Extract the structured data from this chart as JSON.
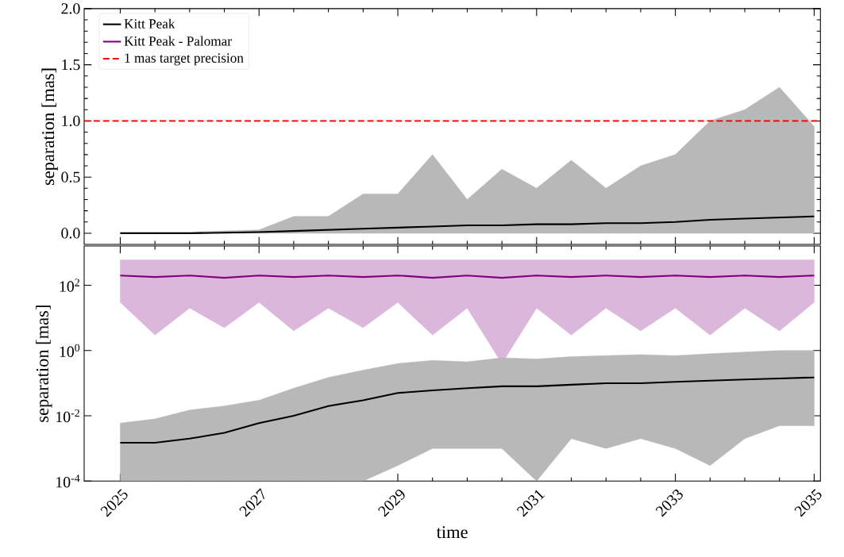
{
  "chart_data": [
    {
      "type": "line",
      "ylabel": "separation [mas]",
      "xlim": [
        2024.48,
        2035.09
      ],
      "xticks": [
        2025,
        2027,
        2029,
        2031,
        2033,
        2035
      ],
      "ylim": [
        -0.1,
        2.0
      ],
      "yticks": [
        {
          "value": 0,
          "label": "0.0"
        },
        {
          "value": 0.5,
          "label": "0.5"
        },
        {
          "value": 1,
          "label": "1.0"
        },
        {
          "value": 1.5,
          "label": "1.5"
        },
        {
          "value": 2,
          "label": "2.0"
        }
      ],
      "tick_labels": "y",
      "legend": "top left",
      "x": [
        2025,
        2025.5,
        2026,
        2026.5,
        2027,
        2027.5,
        2028,
        2028.5,
        2029,
        2029.5,
        2030,
        2030.5,
        2031,
        2031.5,
        2032,
        2032.5,
        2033,
        2033.5,
        2034,
        2034.5,
        2035
      ],
      "series": [
        {
          "name": "Kitt Peak",
          "color": "#000000",
          "values": [
            0,
            0,
            0,
            0.005,
            0.01,
            0.02,
            0.03,
            0.04,
            0.05,
            0.06,
            0.07,
            0.07,
            0.08,
            0.08,
            0.09,
            0.09,
            0.1,
            0.12,
            0.13,
            0.14,
            0.15
          ],
          "lower": [
            0,
            0,
            0,
            0,
            0,
            0,
            0,
            0,
            0,
            0,
            0,
            0,
            0,
            0,
            0,
            0,
            0,
            0,
            0,
            0,
            0
          ],
          "upper": [
            0.01,
            0.01,
            0.01,
            0.02,
            0.03,
            0.15,
            0.15,
            0.35,
            0.35,
            0.7,
            0.3,
            0.57,
            0.4,
            0.65,
            0.4,
            0.6,
            0.7,
            1.0,
            1.1,
            1.3,
            0.95
          ]
        }
      ],
      "ref_lines": [
        {
          "axis": "y",
          "value": 1,
          "label": "1 mas target precision",
          "color": "#ff0000",
          "line_style": "dashed"
        }
      ]
    },
    {
      "type": "line",
      "xlabel": "time",
      "ylabel": "separation [mas]",
      "log": "y",
      "xlim": [
        2024.48,
        2035.09
      ],
      "xticks": [
        2025,
        2027,
        2029,
        2031,
        2033,
        2035
      ],
      "ylim": [
        0.0001,
        1600
      ],
      "yticks": [
        {
          "value": 0.0001,
          "label": "10$^{-4}$"
        },
        {
          "value": 0.01,
          "label": "10$^{-2}$"
        },
        {
          "value": 1,
          "label": "10$^{0}$"
        },
        {
          "value": 100,
          "label": "10$^{2}$"
        }
      ],
      "x": [
        2025,
        2025.5,
        2026,
        2026.5,
        2027,
        2027.5,
        2028,
        2028.5,
        2029,
        2029.5,
        2030,
        2030.5,
        2031,
        2031.5,
        2032,
        2032.5,
        2033,
        2033.5,
        2034,
        2034.5,
        2035
      ],
      "series": [
        {
          "color": "#800080",
          "name": "Kitt Peak - Palomar",
          "values": [
            200,
            180,
            200,
            170,
            200,
            180,
            200,
            180,
            200,
            170,
            200,
            170,
            200,
            180,
            200,
            180,
            200,
            180,
            200,
            180,
            200
          ],
          "lower": [
            30,
            3,
            20,
            5,
            30,
            4,
            20,
            5,
            30,
            3,
            20,
            0.4,
            20,
            3,
            20,
            4,
            20,
            3,
            20,
            4,
            30
          ],
          "upper": [
            600,
            600,
            600,
            600,
            600,
            600,
            600,
            600,
            600,
            600,
            600,
            600,
            600,
            600,
            600,
            600,
            600,
            600,
            600,
            600,
            600
          ]
        },
        {
          "color": "#000000",
          "values": [
            0.0015,
            0.0015,
            0.002,
            0.003,
            0.006,
            0.01,
            0.02,
            0.03,
            0.05,
            0.06,
            0.07,
            0.08,
            0.08,
            0.09,
            0.1,
            0.1,
            0.11,
            0.12,
            0.13,
            0.14,
            0.15
          ],
          "lower": [
            0.0001,
            0.0001,
            0.0001,
            0.0001,
            0.0001,
            0.0001,
            0.0001,
            0.0001,
            0.0003,
            0.001,
            0.001,
            0.001,
            0.0001,
            0.002,
            0.001,
            0.002,
            0.001,
            0.0003,
            0.002,
            0.005,
            0.005
          ],
          "upper": [
            0.006,
            0.008,
            0.015,
            0.02,
            0.03,
            0.07,
            0.15,
            0.25,
            0.4,
            0.5,
            0.45,
            0.6,
            0.55,
            0.65,
            0.7,
            0.75,
            0.7,
            0.8,
            0.9,
            1,
            1
          ]
        }
      ]
    }
  ]
}
